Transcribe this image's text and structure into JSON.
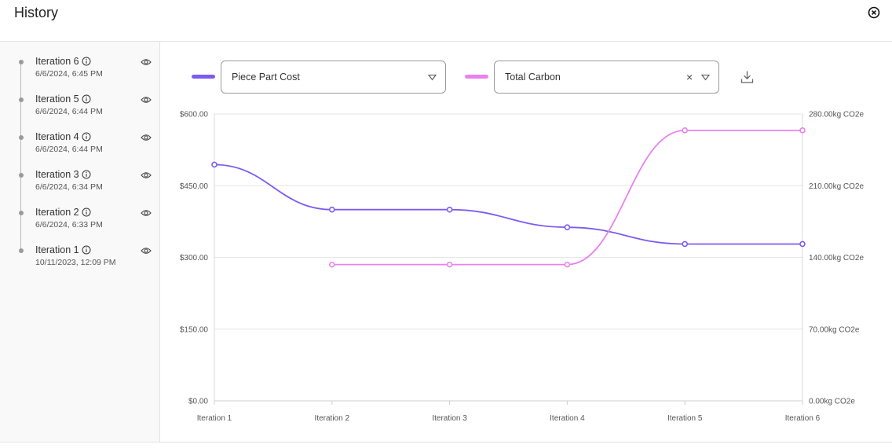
{
  "header": {
    "title": "History"
  },
  "sidebar": {
    "items": [
      {
        "label": "Iteration 6",
        "date": "6/6/2024, 6:45 PM"
      },
      {
        "label": "Iteration 5",
        "date": "6/6/2024, 6:44 PM"
      },
      {
        "label": "Iteration 4",
        "date": "6/6/2024, 6:44 PM"
      },
      {
        "label": "Iteration 3",
        "date": "6/6/2024, 6:34 PM"
      },
      {
        "label": "Iteration 2",
        "date": "6/6/2024, 6:33 PM"
      },
      {
        "label": "Iteration 1",
        "date": "10/11/2023, 12:09 PM"
      }
    ]
  },
  "controls": {
    "left_select": {
      "value": "Piece Part Cost",
      "color": "#7b5cf0"
    },
    "right_select": {
      "value": "Total Carbon",
      "color": "#e882ee",
      "clear_symbol": "×"
    }
  },
  "chart_data": {
    "type": "line",
    "categories": [
      "Iteration 1",
      "Iteration 2",
      "Iteration 3",
      "Iteration 4",
      "Iteration 5",
      "Iteration 6"
    ],
    "series": [
      {
        "name": "Piece Part Cost",
        "axis": "left",
        "color": "#7b5cf0",
        "values": [
          494,
          400,
          400,
          363,
          328,
          328
        ]
      },
      {
        "name": "Total Carbon",
        "axis": "right",
        "color": "#e882ee",
        "values": [
          null,
          133,
          133,
          133,
          264,
          264
        ]
      }
    ],
    "left_axis": {
      "ylim": [
        0,
        600
      ],
      "ticks": [
        "$0.00",
        "$150.00",
        "$300.00",
        "$450.00",
        "$600.00"
      ]
    },
    "right_axis": {
      "ylim": [
        0,
        280
      ],
      "ticks": [
        "0.00kg CO2e",
        "70.00kg CO2e",
        "140.00kg CO2e",
        "210.00kg CO2e",
        "280.00kg CO2e"
      ]
    },
    "grid": true,
    "curve": "smooth"
  }
}
